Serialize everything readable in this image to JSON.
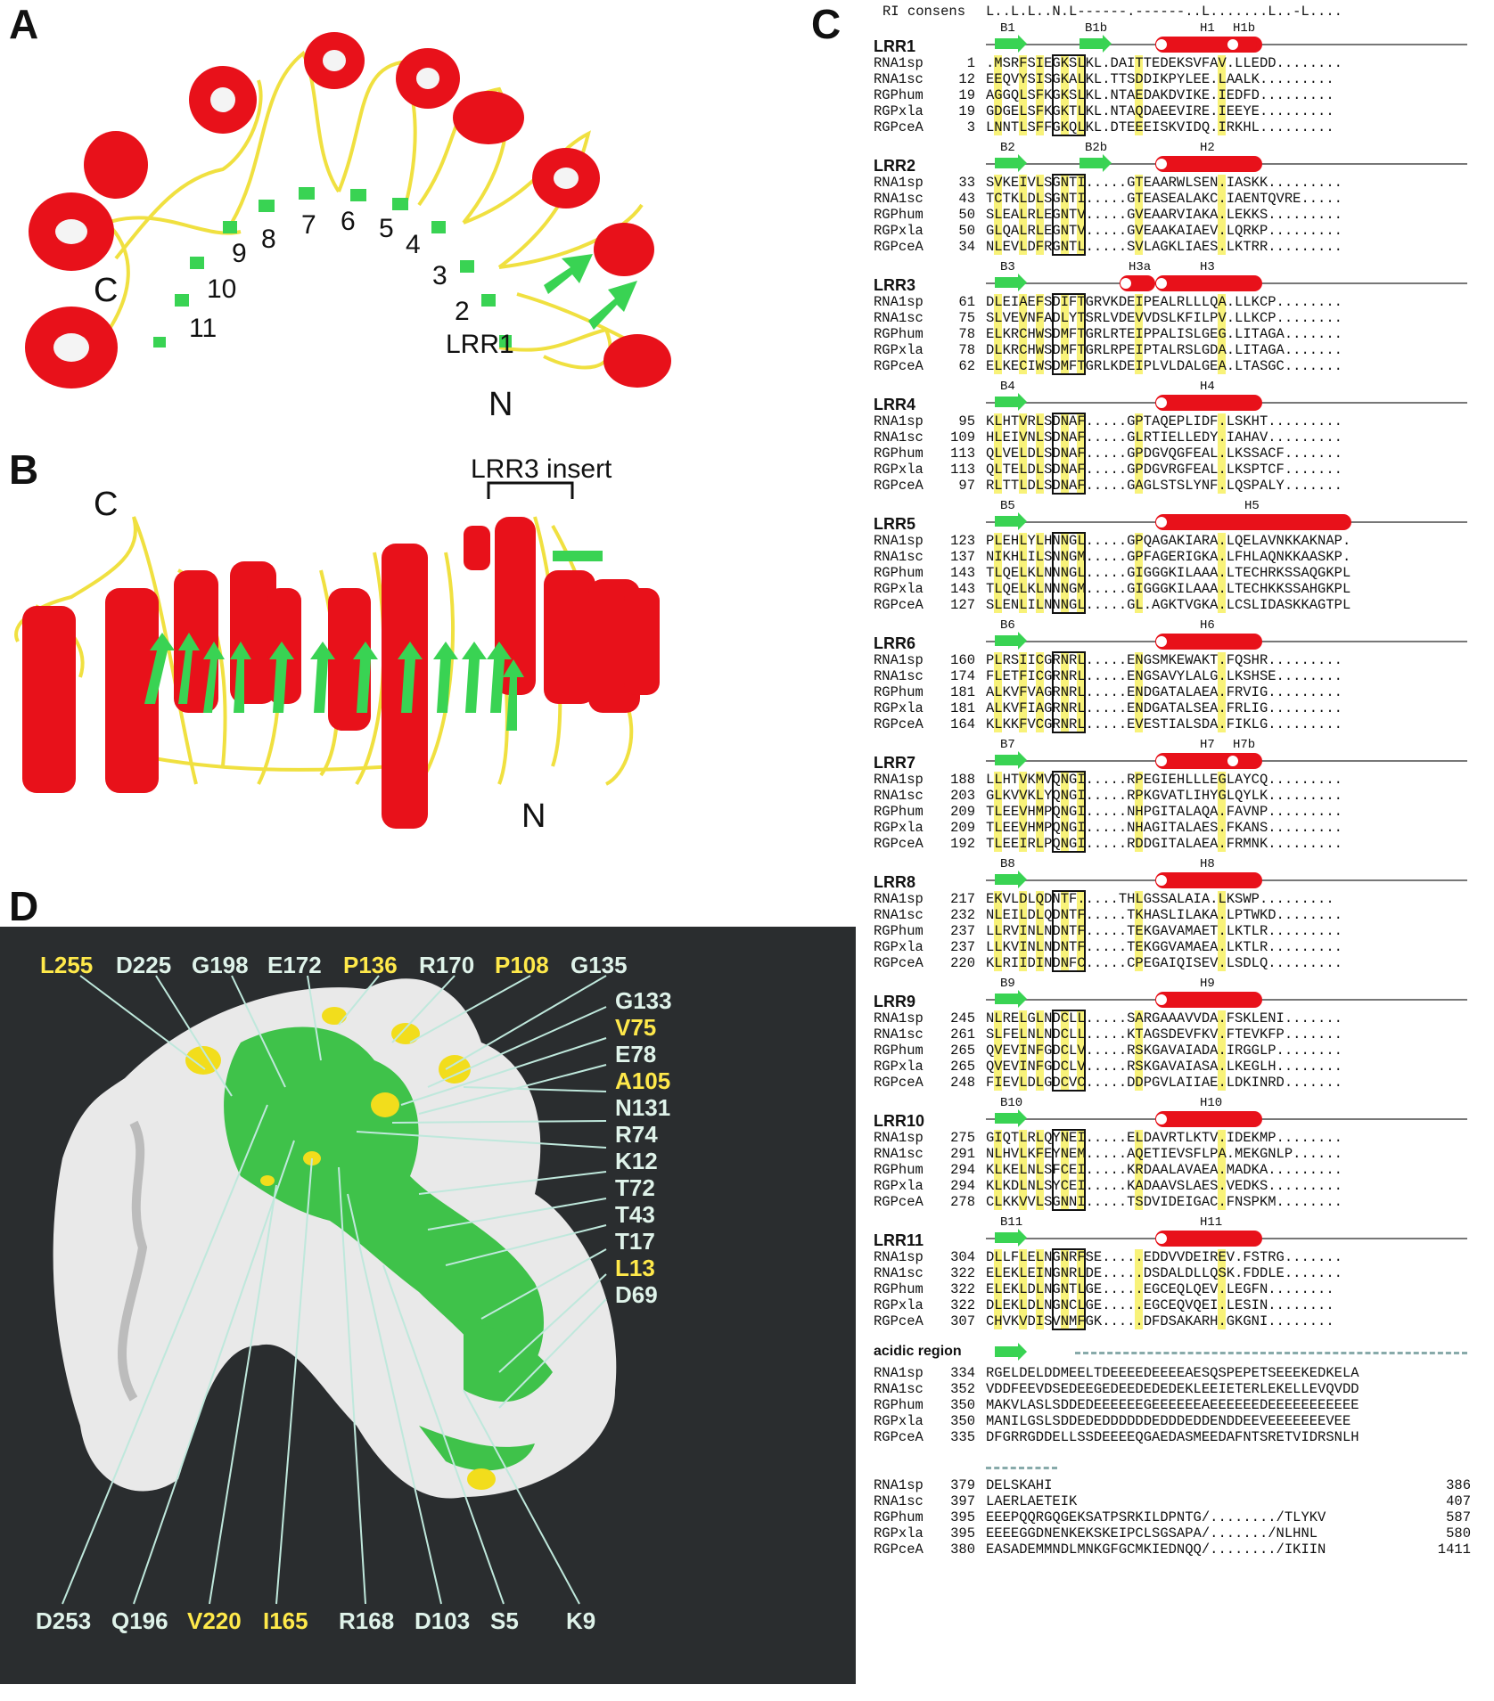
{
  "panels": {
    "A": "A",
    "B": "B",
    "C": "C",
    "D": "D"
  },
  "panelA": {
    "repeat_labels": [
      "LRR1",
      "2",
      "3",
      "4",
      "5",
      "6",
      "7",
      "8",
      "9",
      "10",
      "11"
    ],
    "terminus_c": "C",
    "terminus_n": "N"
  },
  "panelB": {
    "insert_label": "LRR3 insert",
    "terminus_c": "C",
    "terminus_n": "N"
  },
  "panelC": {
    "consensus_label": "RI consens",
    "consensus_seq": "L..L.L..N.L------.------..L.......L..-L....",
    "blocks": [
      {
        "title": "LRR1",
        "ss": {
          "strands": [
            "B1",
            "B1b"
          ],
          "helices": [
            "H1",
            "H1b"
          ]
        },
        "rows": [
          {
            "name": "RNA1sp",
            "num": "1",
            "seq": ".MSRFSIEGKSLKL.DAITTEDEKSVFAV.LLEDD........"
          },
          {
            "name": "RNA1sc",
            "num": "12",
            "seq": "EEQVYSISGKALKL.TTSDDIKPYLEE.LAALK........."
          },
          {
            "name": "RGPhum",
            "num": "19",
            "seq": "AGGQLSFKGKSLKL.NTAEDAKDVIKE.IEDFD........."
          },
          {
            "name": "RGPxla",
            "num": "19",
            "seq": "GDGELSFKGKTLKL.NTAQDAEEVIRE.IEEYE........."
          },
          {
            "name": "RGPceA",
            "num": "3",
            "seq": "LNNTLSFFGKQLKL.DTEEEISKVIDQ.IRKHL........."
          }
        ]
      },
      {
        "title": "LRR2",
        "ss": {
          "strands": [
            "B2",
            "B2b"
          ],
          "helices": [
            "H2"
          ]
        },
        "rows": [
          {
            "name": "RNA1sp",
            "num": "33",
            "seq": "SVKEIVLSGNTI.....GTEAARWLSEN.IASKK........."
          },
          {
            "name": "RNA1sc",
            "num": "43",
            "seq": "TCTKLDLSGNTI.....GTEASEALAKC.IAENTQVRE....."
          },
          {
            "name": "RGPhum",
            "num": "50",
            "seq": "SLEALRLEGNTV.....GVEAARVIAKA.LEKKS........."
          },
          {
            "name": "RGPxla",
            "num": "50",
            "seq": "GLQALRLEGNTV.....GVEAAKAIAEV.LQRKP........."
          },
          {
            "name": "RGPceA",
            "num": "34",
            "seq": "NLEVLDFRGNTL.....SVLAGKLIAES.LKTRR........."
          }
        ]
      },
      {
        "title": "LRR3",
        "ss": {
          "strands": [
            "B3"
          ],
          "helices": [
            "H3a",
            "H3"
          ]
        },
        "rows": [
          {
            "name": "RNA1sp",
            "num": "61",
            "seq": "DLEIAEFSDIFTGRVKDEIPEALRLLLQA.LLKCP........"
          },
          {
            "name": "RNA1sc",
            "num": "75",
            "seq": "SLVEVNFADLYTSRLVDEVVDSLKFILPV.LLKCP........"
          },
          {
            "name": "RGPhum",
            "num": "78",
            "seq": "ELKRCHWSDMFTGRLRTEIPPALISLGEG.LITAGA......."
          },
          {
            "name": "RGPxla",
            "num": "78",
            "seq": "DLKRCHWSDMFTGRLRPEIPTALRSLGDA.LITAGA......."
          },
          {
            "name": "RGPceA",
            "num": "62",
            "seq": "ELKECIWSDMFTGRLKDEIPLVLDALGEA.LTASGC......."
          }
        ]
      },
      {
        "title": "LRR4",
        "ss": {
          "strands": [
            "B4"
          ],
          "helices": [
            "H4"
          ]
        },
        "rows": [
          {
            "name": "RNA1sp",
            "num": "95",
            "seq": "KLHTVRLSDNAF.....GPTAQEPLIDF.LSKHT........."
          },
          {
            "name": "RNA1sc",
            "num": "109",
            "seq": "HLEIVNLSDNAF.....GLRTIELLEDY.IAHAV........."
          },
          {
            "name": "RGPhum",
            "num": "113",
            "seq": "QLVELDLSDNAF.....GPDGVQGFEAL.LKSSACF......."
          },
          {
            "name": "RGPxla",
            "num": "113",
            "seq": "QLTELDLSDNAF.....GPDGVRGFEAL.LKSPTCF......."
          },
          {
            "name": "RGPceA",
            "num": "97",
            "seq": "RLTTLDLSDNAF.....GAGLSTSLYNF.LQSPALY......."
          }
        ]
      },
      {
        "title": "LRR5",
        "ss": {
          "strands": [
            "B5"
          ],
          "helices": [
            "H5"
          ]
        },
        "rows": [
          {
            "name": "RNA1sp",
            "num": "123",
            "seq": "PLEHLYLHNNGL.....GPQAGAKIARA.LQELAVNKKAKNAP."
          },
          {
            "name": "RNA1sc",
            "num": "137",
            "seq": "NIKHLILSNNGM.....GPFAGERIGKA.LFHLAQNKKAASKP."
          },
          {
            "name": "RGPhum",
            "num": "143",
            "seq": "TLQELKLNNNGL.....GIGGGKILAAA.LTECHRKSSAQGKPL"
          },
          {
            "name": "RGPxla",
            "num": "143",
            "seq": "TLQELKLNNNGM.....GIGGGKILAAA.LTECHKKSSAHGKPL"
          },
          {
            "name": "RGPceA",
            "num": "127",
            "seq": "SLENLILNNNGL.....GL.AGKTVGKA.LCSLIDASKKAGTPL"
          }
        ]
      },
      {
        "title": "LRR6",
        "ss": {
          "strands": [
            "B6"
          ],
          "helices": [
            "H6"
          ]
        },
        "rows": [
          {
            "name": "RNA1sp",
            "num": "160",
            "seq": "PLRSIICGRNRL.....ENGSMKEWAKT.FQSHR........."
          },
          {
            "name": "RNA1sc",
            "num": "174",
            "seq": "FLETFICGRNRL.....ENGSAVYLALG.LKSHSE........"
          },
          {
            "name": "RGPhum",
            "num": "181",
            "seq": "ALKVFVAGRNRL.....ENDGATALAEA.FRVIG........."
          },
          {
            "name": "RGPxla",
            "num": "181",
            "seq": "ALKVFIAGRNRL.....ENDGATALSEA.FRLIG........."
          },
          {
            "name": "RGPceA",
            "num": "164",
            "seq": "KLKKFVCGRNRL.....EVESTIALSDA.FIKLG........."
          }
        ]
      },
      {
        "title": "LRR7",
        "ss": {
          "strands": [
            "B7"
          ],
          "helices": [
            "H7",
            "H7b"
          ]
        },
        "rows": [
          {
            "name": "RNA1sp",
            "num": "188",
            "seq": "LLHTVKMVQNGI.....RPEGIEHLLLEGLAYCQ........."
          },
          {
            "name": "RNA1sc",
            "num": "203",
            "seq": "GLKVVKLYQNGI.....RPKGVATLIHYGLQYLK........."
          },
          {
            "name": "RGPhum",
            "num": "209",
            "seq": "TLEEVHMPQNGI.....NHPGITALAQA.FAVNP........."
          },
          {
            "name": "RGPxla",
            "num": "209",
            "seq": "TLEEVHMPQNGI.....NHAGITALAES.FKANS........."
          },
          {
            "name": "RGPceA",
            "num": "192",
            "seq": "TLEEIRLPQNGI.....RDDGITALAEA.FRMNK........."
          }
        ]
      },
      {
        "title": "LRR8",
        "ss": {
          "strands": [
            "B8"
          ],
          "helices": [
            "H8"
          ]
        },
        "rows": [
          {
            "name": "RNA1sp",
            "num": "217",
            "seq": "EKVLDLQDNTF.....THLGSSALAIA.LKSWP........."
          },
          {
            "name": "RNA1sc",
            "num": "232",
            "seq": "NLEILDLQDNTF.....TKHASLILAKA.LPTWKD........"
          },
          {
            "name": "RGPhum",
            "num": "237",
            "seq": "LLRVINLNDNTF.....TEKGAVAMAET.LKTLR........."
          },
          {
            "name": "RGPxla",
            "num": "237",
            "seq": "LLKVINLNDNTF.....TEKGGVAMAEA.LKTLR........."
          },
          {
            "name": "RGPceA",
            "num": "220",
            "seq": "KLRIIDINDNFC.....CPEGAIQISEV.LSDLQ........."
          }
        ]
      },
      {
        "title": "LRR9",
        "ss": {
          "strands": [
            "B9"
          ],
          "helices": [
            "H9"
          ]
        },
        "rows": [
          {
            "name": "RNA1sp",
            "num": "245",
            "seq": "NLRELGLNDCLL.....SARGAAAVVDA.FSKLENI......."
          },
          {
            "name": "RNA1sc",
            "num": "261",
            "seq": "SLFELNLNDCLL.....KTAGSDEVFKV.FTEVKFP......."
          },
          {
            "name": "RGPhum",
            "num": "265",
            "seq": "QVEVINFGDCLV.....RSKGAVAIADA.IRGGLP........"
          },
          {
            "name": "RGPxla",
            "num": "265",
            "seq": "QVEVINFGDCLV.....RSKGAVAIASA.LKEGLH........"
          },
          {
            "name": "RGPceA",
            "num": "248",
            "seq": "FIEVLDLGDCVC.....DDPGVLAIIAE.LDKINRD......."
          }
        ]
      },
      {
        "title": "LRR10",
        "ss": {
          "strands": [
            "B10"
          ],
          "helices": [
            "H10"
          ]
        },
        "rows": [
          {
            "name": "RNA1sp",
            "num": "275",
            "seq": "GIQTLRLQYNEI.....ELDAVRTLKTV.IDEKMP........"
          },
          {
            "name": "RNA1sc",
            "num": "291",
            "seq": "NLHVLKFEYNEM.....AQETIEVSFLPA.MEKGNLP......"
          },
          {
            "name": "RGPhum",
            "num": "294",
            "seq": "KLKELNLSFCEI.....KRDAALAVAEA.MADKA........."
          },
          {
            "name": "RGPxla",
            "num": "294",
            "seq": "KLKDLNLSYCEI.....KADAAVSLAES.VEDKS........."
          },
          {
            "name": "RGPceA",
            "num": "278",
            "seq": "CLKKVVLSGNNI.....TSDVIDEIGAC.FNSPKM........"
          }
        ]
      },
      {
        "title": "LRR11",
        "ss": {
          "strands": [
            "B11"
          ],
          "helices": [
            "H11"
          ]
        },
        "rows": [
          {
            "name": "RNA1sp",
            "num": "304",
            "seq": "DLLFLELNGNRFSE.....EDDVVDEIREV.FSTRG......."
          },
          {
            "name": "RNA1sc",
            "num": "322",
            "seq": "ELEKLEINGNRLDE.....DSDALDLLQSK.FDDLE......."
          },
          {
            "name": "RGPhum",
            "num": "322",
            "seq": "ELEKLDLNGNTLGE.....EGCEQLQEV.LEGFN........"
          },
          {
            "name": "RGPxla",
            "num": "322",
            "seq": "DLEKLDLNGNCLGE.....EGCEQVQEI.LESIN........"
          },
          {
            "name": "RGPceA",
            "num": "307",
            "seq": "CHVKVDISVNMFGK.....DFDSAKARH.GKGNI........"
          }
        ]
      }
    ],
    "acidic": {
      "title": "acidic region",
      "rows": [
        {
          "name": "RNA1sp",
          "num": "334",
          "seq": "RGELDELDDMEELTDEEEEDEEEEAESQSPEPETSEEEKEDKELA"
        },
        {
          "name": "RNA1sc",
          "num": "352",
          "seq": "VDDFEEVDSEDEEGEDEEDEDEDEKLEEIETERLEKELLEVQVDD"
        },
        {
          "name": "RGPhum",
          "num": "350",
          "seq": "MAKVLASLSDDEDEEEEEEGEEEEEEAEEEEEEDEEEEEEEEEEE"
        },
        {
          "name": "RGPxla",
          "num": "350",
          "seq": "MANILGSLSDDEDEDDDDDDEDDDEDDENDDEEVEEEEEEEVEE"
        },
        {
          "name": "RGPceA",
          "num": "335",
          "seq": "DFGRRGDDELLSSDEEEEQGAEDASMEEDAFNTSRETVIDRSNLH"
        }
      ]
    },
    "tail": {
      "rows": [
        {
          "name": "RNA1sp",
          "num": "379",
          "seq": "DELSKAHI",
          "end": "386"
        },
        {
          "name": "RNA1sc",
          "num": "397",
          "seq": "LAERLAETEIK",
          "end": "407"
        },
        {
          "name": "RGPhum",
          "num": "395",
          "seq": "EEEPQQRGQGEKSATPSRKILDPNTG/......../TLYKV",
          "end": "587"
        },
        {
          "name": "RGPxla",
          "num": "395",
          "seq": "EEEEGGDNENKEKSKEIPCLSGSAPA/......./NLHNL",
          "end": "580"
        },
        {
          "name": "RGPceA",
          "num": "380",
          "seq": "EASADEMMNDLMNKGFGCMKIEDNQQ/......../IKIIN",
          "end": "1411"
        }
      ]
    }
  },
  "panelD": {
    "top_labels": [
      {
        "text": "L255",
        "color": "yellow"
      },
      {
        "text": "D225",
        "color": "white"
      },
      {
        "text": "G198",
        "color": "white"
      },
      {
        "text": "E172",
        "color": "white"
      },
      {
        "text": "P136",
        "color": "yellow"
      },
      {
        "text": "R170",
        "color": "white"
      },
      {
        "text": "P108",
        "color": "yellow"
      },
      {
        "text": "G135",
        "color": "white"
      }
    ],
    "right_labels": [
      {
        "text": "G133",
        "color": "white"
      },
      {
        "text": "V75",
        "color": "yellow"
      },
      {
        "text": "E78",
        "color": "white"
      },
      {
        "text": "A105",
        "color": "yellow"
      },
      {
        "text": "N131",
        "color": "white"
      },
      {
        "text": "R74",
        "color": "white"
      },
      {
        "text": "K12",
        "color": "white"
      },
      {
        "text": "T72",
        "color": "white"
      },
      {
        "text": "T43",
        "color": "white"
      },
      {
        "text": "T17",
        "color": "white"
      },
      {
        "text": "L13",
        "color": "yellow"
      },
      {
        "text": "D69",
        "color": "white"
      }
    ],
    "bottom_labels": [
      {
        "text": "D253",
        "color": "white"
      },
      {
        "text": "Q196",
        "color": "white"
      },
      {
        "text": "V220",
        "color": "yellow"
      },
      {
        "text": "I165",
        "color": "yellow"
      },
      {
        "text": "R168",
        "color": "white"
      },
      {
        "text": "D103",
        "color": "white"
      },
      {
        "text": "S5",
        "color": "white"
      },
      {
        "text": "K9",
        "color": "white"
      }
    ]
  },
  "colors": {
    "helix": "#e8111a",
    "strand": "#39d353",
    "coil": "#f0e040",
    "surface_conserved": "#3fc24a",
    "surface_yellow": "#f2dd1c",
    "surface_base": "#e9e9e9",
    "panelD_bg": "#2a2d2f"
  }
}
